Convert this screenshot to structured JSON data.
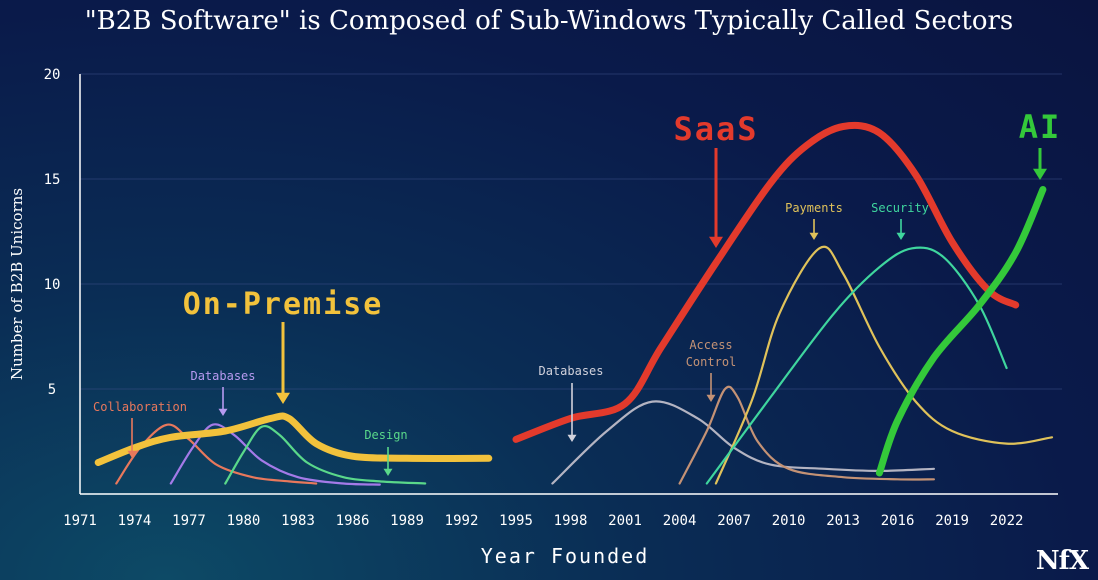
{
  "chart_data": {
    "type": "line",
    "title": "\"B2B Software\" is Composed of Sub-Windows Typically Called Sectors",
    "xlabel": "Year Founded",
    "ylabel": "Number of B2B Unicorns",
    "ylim": [
      0,
      20
    ],
    "xlim": [
      1971,
      2024.5
    ],
    "yticks": [
      "5",
      "10",
      "15",
      "20"
    ],
    "xticks": [
      "1971",
      "1974",
      "1977",
      "1980",
      "1983",
      "1986",
      "1989",
      "1992",
      "1995",
      "1998",
      "2001",
      "2004",
      "2007",
      "2010",
      "2013",
      "2016",
      "2019",
      "2022"
    ],
    "grid": true,
    "series": [
      {
        "name": "On-Premise",
        "color": "#f2c23c",
        "points": [
          [
            1972,
            1.5
          ],
          [
            1974,
            2.2
          ],
          [
            1976,
            2.7
          ],
          [
            1979,
            3.0
          ],
          [
            1981.5,
            3.6
          ],
          [
            1982.5,
            3.6
          ],
          [
            1984,
            2.4
          ],
          [
            1986,
            1.8
          ],
          [
            1989,
            1.7
          ],
          [
            1993.5,
            1.7
          ]
        ]
      },
      {
        "name": "Collaboration",
        "color": "#e8785c",
        "points": [
          [
            1973,
            0.5
          ],
          [
            1974.3,
            2.2
          ],
          [
            1975.8,
            3.3
          ],
          [
            1977,
            2.6
          ],
          [
            1978.5,
            1.4
          ],
          [
            1980.5,
            0.8
          ],
          [
            1982.5,
            0.6
          ],
          [
            1984,
            0.5
          ]
        ]
      },
      {
        "name": "Databases",
        "color": "#a47ae8",
        "points": [
          [
            1976,
            0.5
          ],
          [
            1977.2,
            2.2
          ],
          [
            1978.3,
            3.3
          ],
          [
            1979.5,
            2.8
          ],
          [
            1981,
            1.6
          ],
          [
            1983,
            0.8
          ],
          [
            1985.5,
            0.5
          ],
          [
            1987.5,
            0.45
          ]
        ]
      },
      {
        "name": "Design",
        "color": "#5ad88a",
        "points": [
          [
            1979,
            0.5
          ],
          [
            1980,
            2.0
          ],
          [
            1981,
            3.2
          ],
          [
            1982,
            2.8
          ],
          [
            1983.5,
            1.5
          ],
          [
            1985.5,
            0.8
          ],
          [
            1987.5,
            0.6
          ],
          [
            1990,
            0.5
          ]
        ]
      },
      {
        "name": "SaaS",
        "color": "#e33a2c",
        "points": [
          [
            1995,
            2.6
          ],
          [
            1998,
            3.6
          ],
          [
            2001,
            4.3
          ],
          [
            2003,
            7.0
          ],
          [
            2006,
            11.0
          ],
          [
            2009,
            14.8
          ],
          [
            2011,
            16.6
          ],
          [
            2013,
            17.5
          ],
          [
            2015,
            17.2
          ],
          [
            2017,
            15.2
          ],
          [
            2019,
            12.0
          ],
          [
            2021,
            9.7
          ],
          [
            2022.5,
            9.0
          ]
        ]
      },
      {
        "name": "Databases",
        "color": "#b4b4c2",
        "points": [
          [
            1997,
            0.5
          ],
          [
            2000,
            3.0
          ],
          [
            2002.5,
            4.4
          ],
          [
            2005,
            3.6
          ],
          [
            2007,
            2.2
          ],
          [
            2009,
            1.4
          ],
          [
            2012,
            1.2
          ],
          [
            2015,
            1.1
          ],
          [
            2018,
            1.2
          ]
        ]
      },
      {
        "name": "Access Control",
        "color": "#c49275",
        "points": [
          [
            2004,
            0.5
          ],
          [
            2005.5,
            3.0
          ],
          [
            2006.5,
            5.0
          ],
          [
            2007.2,
            4.6
          ],
          [
            2008.3,
            2.5
          ],
          [
            2010,
            1.2
          ],
          [
            2013,
            0.8
          ],
          [
            2016,
            0.7
          ],
          [
            2018,
            0.7
          ]
        ]
      },
      {
        "name": "Payments",
        "color": "#e0c25a",
        "points": [
          [
            2006,
            0.5
          ],
          [
            2008,
            4.5
          ],
          [
            2009.5,
            8.6
          ],
          [
            2011.7,
            11.7
          ],
          [
            2013,
            10.5
          ],
          [
            2015,
            7.0
          ],
          [
            2017,
            4.4
          ],
          [
            2019,
            3.0
          ],
          [
            2022,
            2.4
          ],
          [
            2024.5,
            2.7
          ]
        ]
      },
      {
        "name": "Security",
        "color": "#3fd69e",
        "points": [
          [
            2005.5,
            0.5
          ],
          [
            2009,
            4.6
          ],
          [
            2012.5,
            8.6
          ],
          [
            2015,
            10.8
          ],
          [
            2016.8,
            11.7
          ],
          [
            2018.5,
            11.3
          ],
          [
            2020.5,
            9.0
          ],
          [
            2022,
            6.0
          ]
        ]
      },
      {
        "name": "AI",
        "color": "#34c93a",
        "points": [
          [
            2015,
            1.0
          ],
          [
            2016,
            3.5
          ],
          [
            2018,
            6.5
          ],
          [
            2020.5,
            9.0
          ],
          [
            2022.5,
            11.5
          ],
          [
            2024,
            14.5
          ]
        ]
      }
    ],
    "annotations": [
      {
        "label": "On-Premise",
        "color": "#f2c23c",
        "size": 30
      },
      {
        "label": "SaaS",
        "color": "#e33a2c",
        "size": 32
      },
      {
        "label": "AI",
        "color": "#34c93a",
        "size": 32
      },
      {
        "label": "Collaboration",
        "color": "#e8785c",
        "size": 12
      },
      {
        "label": "Databases",
        "color": "#b79af0",
        "size": 12
      },
      {
        "label": "Design",
        "color": "#5ad88a",
        "size": 12
      },
      {
        "label": "Databases",
        "color": "#d2d2dc",
        "size": 12
      },
      {
        "label": "Access",
        "color": "#c49275",
        "size": 12
      },
      {
        "label": "Control",
        "color": "#c49275",
        "size": 12
      },
      {
        "label": "Payments",
        "color": "#e0c25a",
        "size": 12
      },
      {
        "label": "Security",
        "color": "#3fd69e",
        "size": 12
      }
    ]
  },
  "logo": "NfX"
}
